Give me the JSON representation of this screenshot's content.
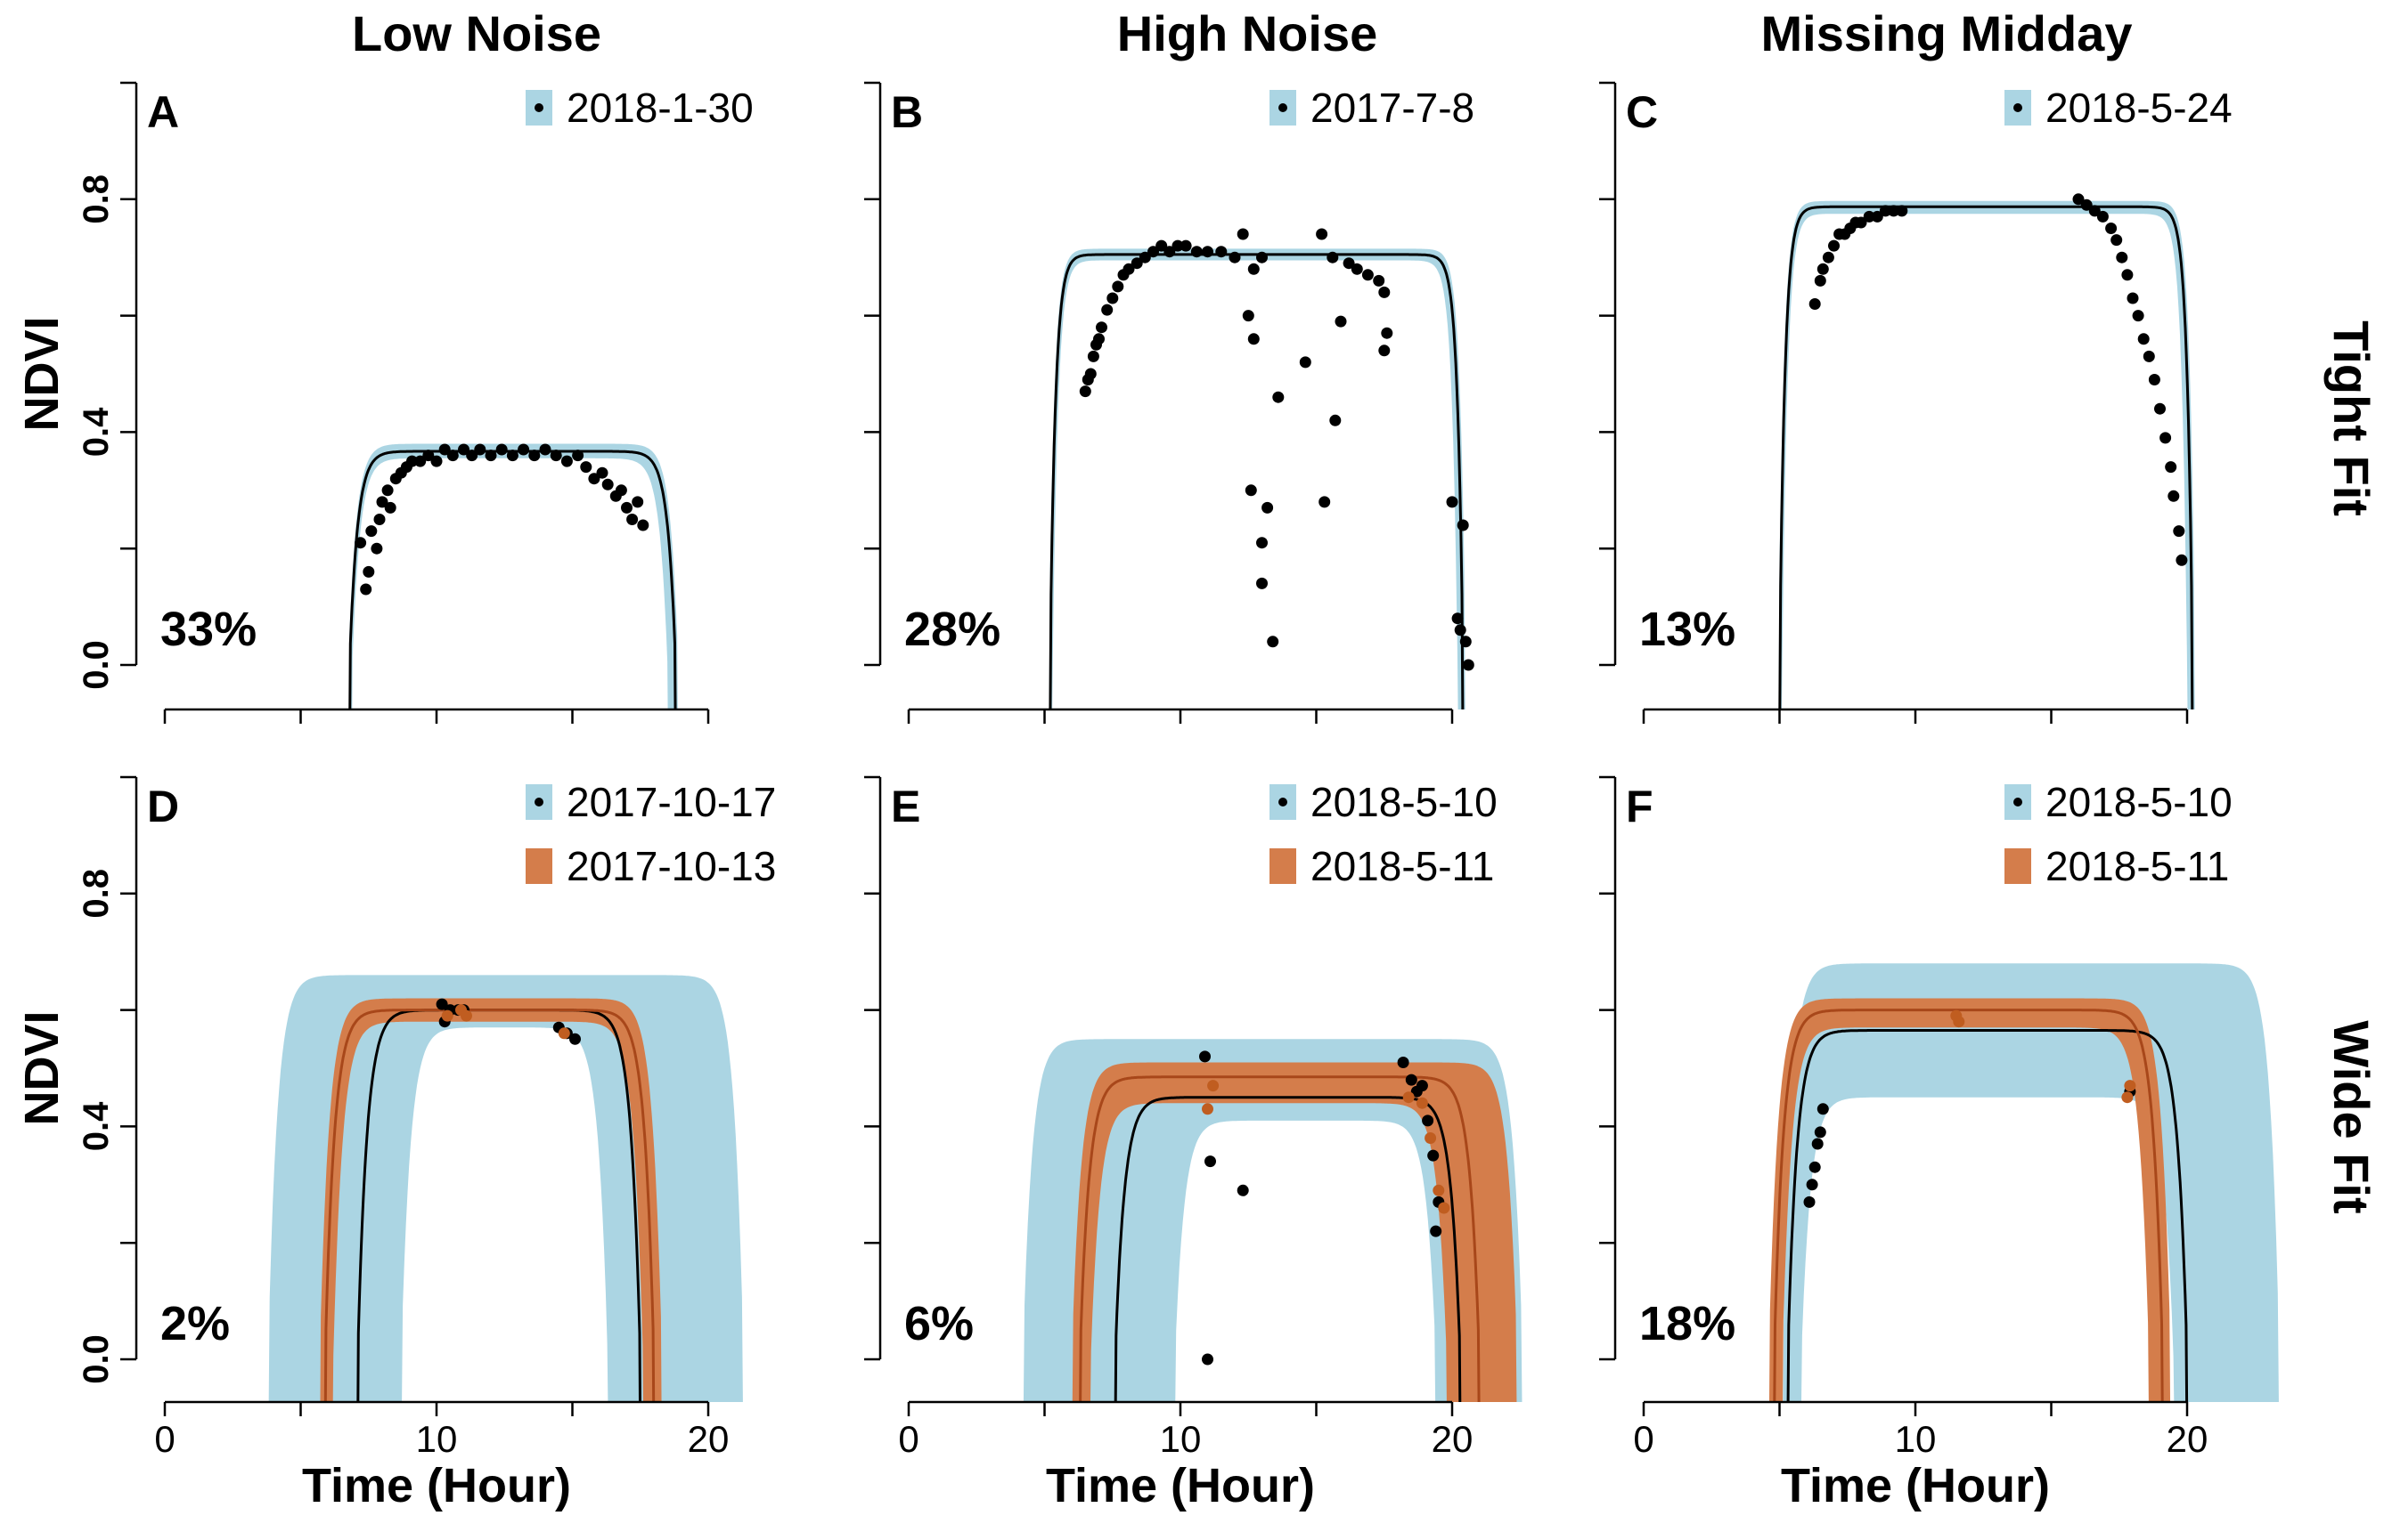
{
  "figure": {
    "columns": [
      "Low Noise",
      "High Noise",
      "Missing Midday"
    ],
    "rows": [
      "Tight Fit",
      "Wide Fit"
    ]
  },
  "colors": {
    "ci_blue": "#abd5e3",
    "ci_orange": "#d47d4b",
    "curve_black": "#000000",
    "curve_orange": "#a8471a",
    "point_black": "#000000",
    "point_orange": "#c05d20"
  },
  "chart_data": [
    {
      "id": "A",
      "type": "line",
      "title": "Low Noise",
      "row": "Tight Fit",
      "xlabel": "",
      "ylabel": "NDVI",
      "xlim": [
        0,
        20
      ],
      "ylim": [
        0,
        1
      ],
      "xticks": [],
      "yticks": [
        0.0,
        0.4,
        0.8
      ],
      "ytick_labels": [
        "0.0",
        "0.4",
        "0.8"
      ],
      "percent": "33%",
      "series": [
        {
          "name": "2018-1-30",
          "style": "black",
          "fit": {
            "start": 6.8,
            "end": 18.8,
            "max": 0.367,
            "k": 3.5
          },
          "ci": {
            "start_lo": 6.75,
            "start_hi": 6.9,
            "end_lo": 18.5,
            "end_hi": 18.9,
            "max_lo": 0.355,
            "max_hi": 0.38
          },
          "points": [
            [
              7.2,
              0.21
            ],
            [
              7.4,
              0.13
            ],
            [
              7.5,
              0.16
            ],
            [
              7.6,
              0.23
            ],
            [
              7.8,
              0.2
            ],
            [
              7.9,
              0.25
            ],
            [
              8.0,
              0.28
            ],
            [
              8.2,
              0.3
            ],
            [
              8.3,
              0.27
            ],
            [
              8.5,
              0.32
            ],
            [
              8.7,
              0.33
            ],
            [
              8.9,
              0.34
            ],
            [
              9.1,
              0.35
            ],
            [
              9.4,
              0.35
            ],
            [
              9.7,
              0.36
            ],
            [
              10.0,
              0.35
            ],
            [
              10.3,
              0.37
            ],
            [
              10.6,
              0.36
            ],
            [
              11.0,
              0.37
            ],
            [
              11.3,
              0.36
            ],
            [
              11.6,
              0.37
            ],
            [
              12.0,
              0.36
            ],
            [
              12.4,
              0.37
            ],
            [
              12.8,
              0.36
            ],
            [
              13.2,
              0.37
            ],
            [
              13.6,
              0.36
            ],
            [
              14.0,
              0.37
            ],
            [
              14.4,
              0.36
            ],
            [
              14.8,
              0.35
            ],
            [
              15.2,
              0.36
            ],
            [
              15.5,
              0.34
            ],
            [
              15.8,
              0.32
            ],
            [
              16.1,
              0.33
            ],
            [
              16.3,
              0.31
            ],
            [
              16.6,
              0.29
            ],
            [
              16.8,
              0.3
            ],
            [
              17.0,
              0.27
            ],
            [
              17.2,
              0.25
            ],
            [
              17.4,
              0.28
            ],
            [
              17.6,
              0.24
            ]
          ]
        }
      ]
    },
    {
      "id": "B",
      "type": "line",
      "title": "High Noise",
      "row": "Tight Fit",
      "xlabel": "",
      "ylabel": "",
      "xlim": [
        0,
        20
      ],
      "ylim": [
        0,
        1
      ],
      "xticks": [],
      "yticks": [
        0.0,
        0.4,
        0.8
      ],
      "ytick_labels": [],
      "percent": "28%",
      "series": [
        {
          "name": "2017-7-8",
          "style": "black",
          "fit": {
            "start": 5.2,
            "end": 20.4,
            "max": 0.705,
            "k": 5
          },
          "ci": {
            "start_lo": 5.15,
            "start_hi": 5.3,
            "end_lo": 20.2,
            "end_hi": 20.5,
            "max_lo": 0.695,
            "max_hi": 0.715
          },
          "points": [
            [
              6.5,
              0.47
            ],
            [
              6.6,
              0.49
            ],
            [
              6.7,
              0.5
            ],
            [
              6.8,
              0.53
            ],
            [
              6.9,
              0.55
            ],
            [
              7.0,
              0.56
            ],
            [
              7.1,
              0.58
            ],
            [
              7.3,
              0.61
            ],
            [
              7.5,
              0.63
            ],
            [
              7.7,
              0.65
            ],
            [
              7.9,
              0.67
            ],
            [
              8.1,
              0.68
            ],
            [
              8.4,
              0.69
            ],
            [
              8.7,
              0.7
            ],
            [
              9.0,
              0.71
            ],
            [
              9.3,
              0.72
            ],
            [
              9.6,
              0.71
            ],
            [
              9.9,
              0.72
            ],
            [
              10.2,
              0.72
            ],
            [
              10.6,
              0.71
            ],
            [
              11.0,
              0.71
            ],
            [
              11.5,
              0.71
            ],
            [
              12.0,
              0.7
            ],
            [
              12.3,
              0.74
            ],
            [
              12.7,
              0.68
            ],
            [
              13.0,
              0.7
            ],
            [
              12.5,
              0.6
            ],
            [
              12.7,
              0.56
            ],
            [
              12.6,
              0.3
            ],
            [
              13.0,
              0.21
            ],
            [
              13.2,
              0.27
            ],
            [
              13.0,
              0.14
            ],
            [
              13.4,
              0.04
            ],
            [
              13.6,
              0.46
            ],
            [
              14.6,
              0.52
            ],
            [
              15.2,
              0.74
            ],
            [
              15.3,
              0.28
            ],
            [
              15.7,
              0.42
            ],
            [
              15.9,
              0.59
            ],
            [
              15.6,
              0.7
            ],
            [
              16.2,
              0.69
            ],
            [
              16.5,
              0.68
            ],
            [
              16.9,
              0.67
            ],
            [
              17.3,
              0.66
            ],
            [
              17.5,
              0.64
            ],
            [
              17.6,
              0.57
            ],
            [
              17.5,
              0.54
            ],
            [
              20.0,
              0.28
            ],
            [
              20.2,
              0.08
            ],
            [
              20.3,
              0.06
            ],
            [
              20.4,
              0.24
            ],
            [
              20.5,
              0.04
            ],
            [
              20.6,
              0.0
            ]
          ]
        }
      ]
    },
    {
      "id": "C",
      "type": "line",
      "title": "Missing Midday",
      "row": "Tight Fit",
      "xlabel": "",
      "ylabel": "",
      "xlim": [
        0,
        20
      ],
      "ylim": [
        0,
        1
      ],
      "xticks": [],
      "yticks": [
        0.0,
        0.4,
        0.8
      ],
      "ytick_labels": [],
      "percent": "13%",
      "series": [
        {
          "name": "2018-5-24",
          "style": "black",
          "fit": {
            "start": 5.0,
            "end": 20.2,
            "max": 0.787,
            "k": 5
          },
          "ci": {
            "start_lo": 4.95,
            "start_hi": 5.1,
            "end_lo": 20.0,
            "end_hi": 20.3,
            "max_lo": 0.775,
            "max_hi": 0.797
          },
          "points": [
            [
              6.3,
              0.62
            ],
            [
              6.5,
              0.66
            ],
            [
              6.6,
              0.68
            ],
            [
              6.8,
              0.7
            ],
            [
              7.0,
              0.72
            ],
            [
              7.2,
              0.74
            ],
            [
              7.4,
              0.74
            ],
            [
              7.6,
              0.75
            ],
            [
              7.8,
              0.76
            ],
            [
              8.0,
              0.76
            ],
            [
              8.3,
              0.77
            ],
            [
              8.6,
              0.77
            ],
            [
              8.9,
              0.78
            ],
            [
              9.2,
              0.78
            ],
            [
              9.5,
              0.78
            ],
            [
              16.0,
              0.8
            ],
            [
              16.3,
              0.79
            ],
            [
              16.6,
              0.78
            ],
            [
              16.9,
              0.77
            ],
            [
              17.2,
              0.75
            ],
            [
              17.4,
              0.73
            ],
            [
              17.6,
              0.7
            ],
            [
              17.8,
              0.67
            ],
            [
              18.0,
              0.63
            ],
            [
              18.2,
              0.6
            ],
            [
              18.4,
              0.56
            ],
            [
              18.6,
              0.53
            ],
            [
              18.8,
              0.49
            ],
            [
              19.0,
              0.44
            ],
            [
              19.2,
              0.39
            ],
            [
              19.4,
              0.34
            ],
            [
              19.5,
              0.29
            ],
            [
              19.7,
              0.23
            ],
            [
              19.8,
              0.18
            ]
          ]
        }
      ]
    },
    {
      "id": "D",
      "type": "line",
      "title": "",
      "row": "Wide Fit",
      "xlabel": "Time (Hour)",
      "ylabel": "NDVI",
      "xlim": [
        0,
        20
      ],
      "ylim": [
        0,
        1
      ],
      "xticks": [
        0,
        10,
        20
      ],
      "xtick_labels": [
        "0",
        "10",
        "20"
      ],
      "yticks": [
        0.0,
        0.4,
        0.8
      ],
      "ytick_labels": [
        "0.0",
        "0.4",
        "0.8"
      ],
      "percent": "2%",
      "series": [
        {
          "name": "2017-10-17",
          "style": "black",
          "fit": {
            "start": 7.1,
            "end": 17.5,
            "max": 0.6,
            "k": 3
          },
          "ci": {
            "start_lo": 3.8,
            "start_hi": 8.7,
            "end_lo": 16.3,
            "end_hi": 21.3,
            "max_lo": 0.57,
            "max_hi": 0.66
          },
          "points": [
            [
              10.2,
              0.61
            ],
            [
              10.3,
              0.58
            ],
            [
              10.5,
              0.6
            ],
            [
              10.8,
              0.6
            ],
            [
              11.0,
              0.6
            ],
            [
              14.5,
              0.57
            ],
            [
              14.8,
              0.56
            ],
            [
              15.1,
              0.55
            ]
          ]
        },
        {
          "name": "2017-10-13",
          "style": "orange",
          "fit": {
            "start": 5.9,
            "end": 18.0,
            "max": 0.6,
            "k": 3
          },
          "ci": {
            "start_lo": 5.7,
            "start_hi": 6.2,
            "end_lo": 17.6,
            "end_hi": 18.3,
            "max_lo": 0.58,
            "max_hi": 0.62
          },
          "points": [
            [
              10.4,
              0.59
            ],
            [
              10.9,
              0.6
            ],
            [
              11.1,
              0.59
            ],
            [
              14.7,
              0.56
            ]
          ]
        }
      ]
    },
    {
      "id": "E",
      "type": "line",
      "title": "",
      "row": "Wide Fit",
      "xlabel": "Time (Hour)",
      "ylabel": "",
      "xlim": [
        0,
        20
      ],
      "ylim": [
        0,
        1
      ],
      "xticks": [
        0,
        10,
        20
      ],
      "xtick_labels": [
        "0",
        "10",
        "20"
      ],
      "yticks": [
        0.0,
        0.4,
        0.8
      ],
      "ytick_labels": [],
      "percent": "6%",
      "series": [
        {
          "name": "2018-5-10",
          "style": "black",
          "fit": {
            "start": 7.6,
            "end": 20.3,
            "max": 0.45,
            "k": 3
          },
          "ci": {
            "start_lo": 4.2,
            "start_hi": 9.8,
            "end_lo": 19.4,
            "end_hi": 22.6,
            "max_lo": 0.41,
            "max_hi": 0.55
          },
          "points": [
            [
              10.9,
              0.52
            ],
            [
              11.1,
              0.34
            ],
            [
              11.0,
              0.0
            ],
            [
              12.3,
              0.29
            ],
            [
              18.2,
              0.51
            ],
            [
              18.5,
              0.48
            ],
            [
              18.7,
              0.46
            ],
            [
              18.9,
              0.47
            ],
            [
              19.1,
              0.41
            ],
            [
              19.3,
              0.35
            ],
            [
              19.5,
              0.27
            ],
            [
              19.4,
              0.22
            ]
          ]
        },
        {
          "name": "2018-5-11",
          "style": "orange",
          "fit": {
            "start": 6.3,
            "end": 21.0,
            "max": 0.485,
            "k": 3
          },
          "ci": {
            "start_lo": 6.0,
            "start_hi": 6.7,
            "end_lo": 19.8,
            "end_hi": 22.4,
            "max_lo": 0.44,
            "max_hi": 0.51
          },
          "points": [
            [
              11.0,
              0.43
            ],
            [
              11.2,
              0.47
            ],
            [
              18.4,
              0.45
            ],
            [
              18.9,
              0.44
            ],
            [
              19.2,
              0.38
            ],
            [
              19.5,
              0.29
            ],
            [
              19.7,
              0.26
            ]
          ]
        }
      ]
    },
    {
      "id": "F",
      "type": "line",
      "title": "",
      "row": "Wide Fit",
      "xlabel": "Time (Hour)",
      "ylabel": "",
      "xlim": [
        0,
        20
      ],
      "ylim": [
        0,
        1
      ],
      "xticks": [
        0,
        10,
        20
      ],
      "xtick_labels": [
        "0",
        "10",
        "20"
      ],
      "yticks": [
        0.0,
        0.4,
        0.8
      ],
      "ytick_labels": [],
      "percent": "18%",
      "series": [
        {
          "name": "2018-5-10",
          "style": "black",
          "fit": {
            "start": 5.3,
            "end": 20.0,
            "max": 0.565,
            "k": 3
          },
          "ci": {
            "start_lo": 5.1,
            "start_hi": 5.8,
            "end_lo": 19.5,
            "end_hi": 23.4,
            "max_lo": 0.45,
            "max_hi": 0.68
          },
          "points": [
            [
              6.1,
              0.27
            ],
            [
              6.2,
              0.3
            ],
            [
              6.3,
              0.33
            ],
            [
              6.4,
              0.37
            ],
            [
              6.5,
              0.39
            ],
            [
              6.6,
              0.43
            ],
            [
              17.9,
              0.46
            ]
          ]
        },
        {
          "name": "2018-5-11",
          "style": "orange",
          "fit": {
            "start": 4.8,
            "end": 19.1,
            "max": 0.6,
            "k": 3
          },
          "ci": {
            "start_lo": 4.6,
            "start_hi": 5.1,
            "end_lo": 18.6,
            "end_hi": 19.4,
            "max_lo": 0.57,
            "max_hi": 0.62
          },
          "points": [
            [
              11.5,
              0.59
            ],
            [
              11.6,
              0.58
            ],
            [
              17.8,
              0.45
            ],
            [
              17.9,
              0.47
            ]
          ]
        }
      ]
    }
  ]
}
